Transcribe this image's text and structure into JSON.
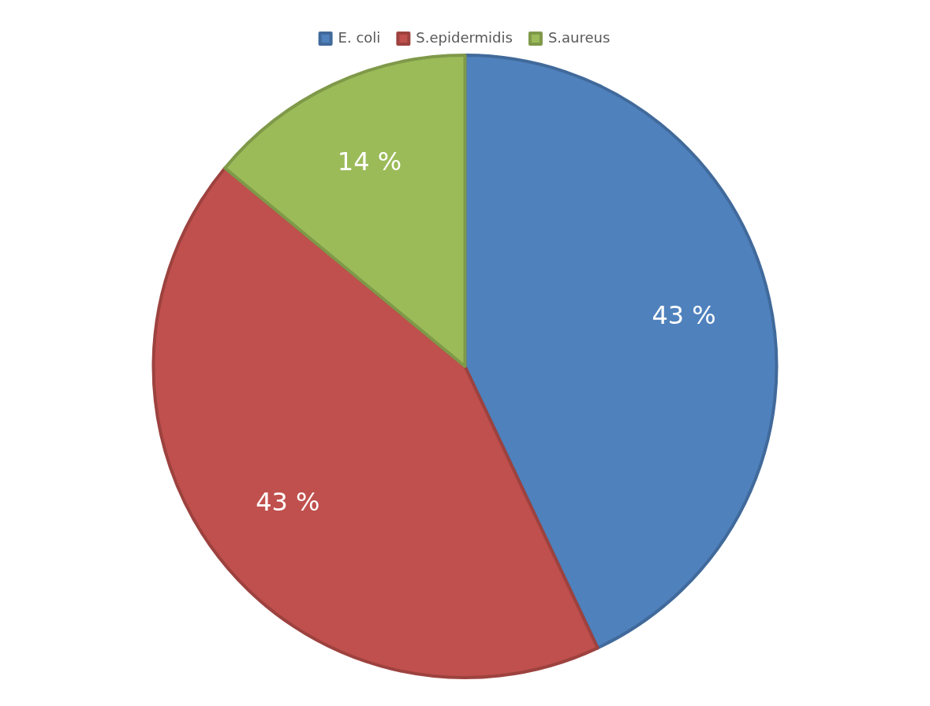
{
  "chart_data": {
    "type": "pie",
    "categories": [
      "E. coli",
      "S.epidermidis",
      "S.aureus"
    ],
    "values": [
      43,
      43,
      14
    ],
    "colors": [
      "#4f81bd",
      "#c0504d",
      "#9bbb59"
    ],
    "value_labels": [
      "43 %",
      "43 %",
      "14 %"
    ],
    "legend": "top"
  }
}
